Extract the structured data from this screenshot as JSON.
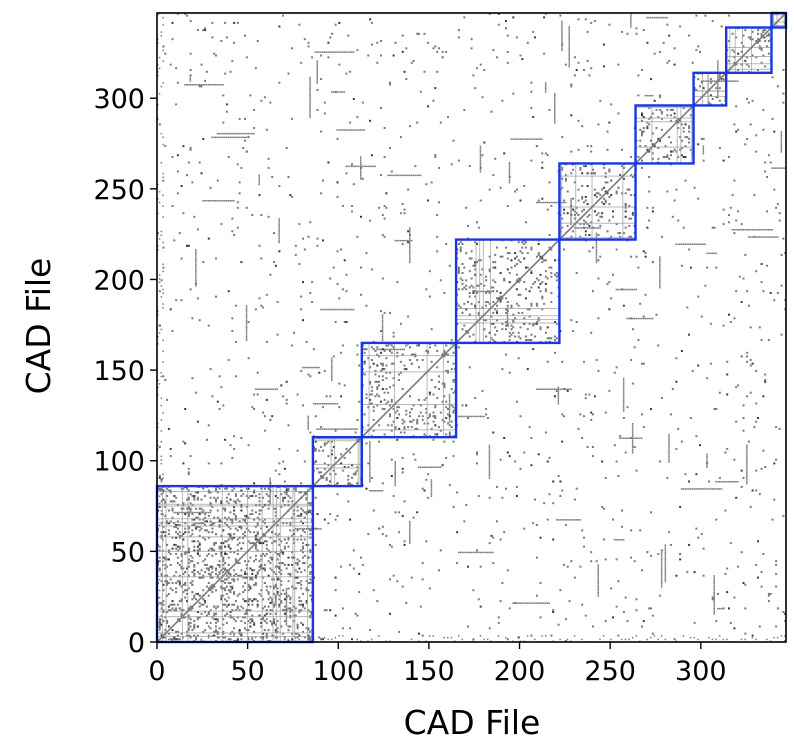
{
  "chart_data": {
    "type": "heatmap",
    "title": "",
    "xlabel": "CAD File",
    "ylabel": "CAD File",
    "xlim": [
      0,
      347
    ],
    "ylim": [
      0,
      347
    ],
    "x_ticks": [
      0,
      50,
      100,
      150,
      200,
      250,
      300
    ],
    "y_ticks": [
      0,
      50,
      100,
      150,
      200,
      250,
      300
    ],
    "cells": "binary file-similarity matrix (gray marks on white)",
    "cluster_blocks": [
      {
        "start": 0,
        "end": 86
      },
      {
        "start": 86,
        "end": 113
      },
      {
        "start": 113,
        "end": 165
      },
      {
        "start": 165,
        "end": 222
      },
      {
        "start": 222,
        "end": 264
      },
      {
        "start": 264,
        "end": 296
      },
      {
        "start": 296,
        "end": 314
      },
      {
        "start": 314,
        "end": 339
      },
      {
        "start": 339,
        "end": 347
      }
    ],
    "colors": {
      "block_outline": "#1a35e6",
      "cell_mark": "#7a7a7a",
      "cell_mark_dark": "#3a3a3a",
      "frame": "#000000"
    }
  }
}
